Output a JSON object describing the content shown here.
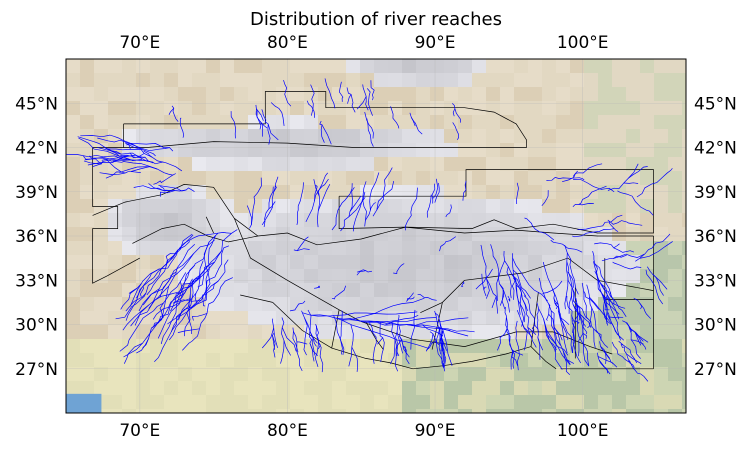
{
  "title": "Distribution of river reaches",
  "map": {
    "projection": "PlateCarree",
    "lon_range": [
      65,
      107
    ],
    "lat_range": [
      24,
      48
    ],
    "background": "stock terrain image",
    "gridlines": true
  },
  "axes": {
    "x_ticks": [
      {
        "value": 70,
        "label": "70°E"
      },
      {
        "value": 80,
        "label": "80°E"
      },
      {
        "value": 90,
        "label": "90°E"
      },
      {
        "value": 100,
        "label": "100°E"
      }
    ],
    "y_ticks": [
      {
        "value": 45,
        "label": "45°N"
      },
      {
        "value": 42,
        "label": "42°N"
      },
      {
        "value": 39,
        "label": "39°N"
      },
      {
        "value": 36,
        "label": "36°N"
      },
      {
        "value": 33,
        "label": "33°N"
      },
      {
        "value": 30,
        "label": "30°N"
      },
      {
        "value": 27,
        "label": "27°N"
      }
    ]
  },
  "colors": {
    "rivers": "#0000ff",
    "boundaries": "#000000",
    "grid": "#b8b8b8",
    "frame": "#000000"
  },
  "chart_data": {
    "type": "map",
    "title": "Distribution of river reaches",
    "series": [
      {
        "kind": "river network",
        "color": "#0000ff"
      },
      {
        "kind": "basin boundaries",
        "color": "#000000"
      }
    ]
  }
}
